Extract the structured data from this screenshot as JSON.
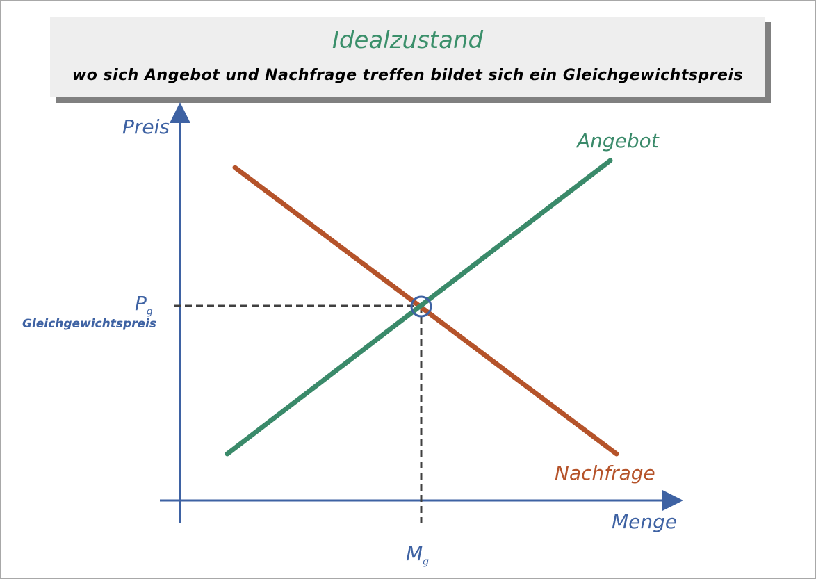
{
  "header": {
    "title": "Idealzustand",
    "subtitle": "wo sich Angebot und Nachfrage treffen bildet sich ein Gleichgewichtspreis"
  },
  "axes": {
    "y_label": "Preis",
    "x_label": "Menge"
  },
  "curves": {
    "supply_label": "Angebot",
    "demand_label": "Nachfrage"
  },
  "equilibrium": {
    "price_label": "P",
    "price_sub": "g",
    "price_caption": "Gleichgewichtspreis",
    "quantity_label": "M",
    "quantity_sub": "g"
  },
  "colors": {
    "axis": "#3e62a3",
    "supply": "#3a8a6a",
    "demand": "#b5532a",
    "title": "#3a8f6a",
    "guide": "#404040"
  }
}
